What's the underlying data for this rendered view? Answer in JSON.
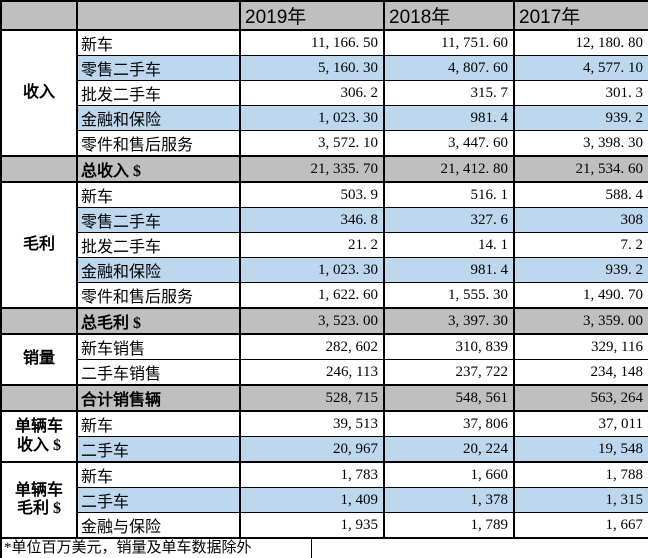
{
  "colors": {
    "header_bg": "#bfbfbf",
    "total_row_bg": "#bfbfbf",
    "highlight_row_bg": "#bdd7ee",
    "border": "#000000",
    "text": "#000000"
  },
  "header": {
    "years": [
      "2019年",
      "2018年",
      "2017年"
    ]
  },
  "rows": [
    {
      "kind": "data",
      "section": {
        "lines": [
          "收入"
        ],
        "span": 5
      },
      "label": "新车",
      "values": [
        "11, 166. 50",
        "11, 751. 60",
        "12, 180. 80"
      ],
      "bg": "white",
      "thick_top": true
    },
    {
      "kind": "data",
      "label": "零售二手车",
      "values": [
        "5, 160. 30",
        "4, 807. 60",
        "4, 577. 10"
      ],
      "bg": "blue"
    },
    {
      "kind": "data",
      "label": "批发二手车",
      "values": [
        "306. 2",
        "315. 7",
        "301. 3"
      ],
      "bg": "white"
    },
    {
      "kind": "data",
      "label": "金融和保险",
      "values": [
        "1, 023. 30",
        "981. 4",
        "939. 2"
      ],
      "bg": "blue"
    },
    {
      "kind": "data",
      "label": "零件和售后服务",
      "values": [
        "3, 572. 10",
        "3, 447. 60",
        "3, 398. 30"
      ],
      "bg": "white"
    },
    {
      "kind": "total",
      "label": "总收入 $",
      "values": [
        "21, 335. 70",
        "21, 412. 80",
        "21, 534. 60"
      ],
      "thick_top": true
    },
    {
      "kind": "data",
      "section": {
        "lines": [
          "毛利"
        ],
        "span": 5
      },
      "label": "新车",
      "values": [
        "503. 9",
        "516. 1",
        "588. 4"
      ],
      "bg": "white",
      "thick_top": true
    },
    {
      "kind": "data",
      "label": "零售二手车",
      "values": [
        "346. 8",
        "327. 6",
        "308"
      ],
      "bg": "blue"
    },
    {
      "kind": "data",
      "label": "批发二手车",
      "values": [
        "21. 2",
        "14. 1",
        "7. 2"
      ],
      "bg": "white"
    },
    {
      "kind": "data",
      "label": "金融和保险",
      "values": [
        "1, 023. 30",
        "981. 4",
        "939. 2"
      ],
      "bg": "blue"
    },
    {
      "kind": "data",
      "label": "零件和售后服务",
      "values": [
        "1, 622. 60",
        "1, 555. 30",
        "1, 490. 70"
      ],
      "bg": "white"
    },
    {
      "kind": "total",
      "label": "总毛利 $",
      "values": [
        "3, 523. 00",
        "3, 397. 30",
        "3, 359. 00"
      ],
      "thick_top": true
    },
    {
      "kind": "data",
      "section": {
        "lines": [
          "销量"
        ],
        "span": 2
      },
      "label": "新车销售",
      "values": [
        "282, 602",
        "310, 839",
        "329, 116"
      ],
      "bg": "white",
      "thick_top": true
    },
    {
      "kind": "data",
      "label": "二手车销售",
      "values": [
        "246, 113",
        "237, 722",
        "234, 148"
      ],
      "bg": "white"
    },
    {
      "kind": "total",
      "label": "合计销售辆",
      "values": [
        "528, 715",
        "548, 561",
        "563, 264"
      ],
      "thick_top": true
    },
    {
      "kind": "data",
      "section": {
        "lines": [
          "单辆车",
          "收入 $"
        ],
        "span": 2
      },
      "label": "新车",
      "values": [
        "39, 513",
        "37, 806",
        "37, 011"
      ],
      "bg": "white",
      "thick_top": true
    },
    {
      "kind": "data",
      "label": "二手车",
      "values": [
        "20, 967",
        "20, 224",
        "19, 548"
      ],
      "bg": "blue"
    },
    {
      "kind": "data",
      "section": {
        "lines": [
          "单辆车",
          "毛利 $"
        ],
        "span": 3
      },
      "label": "新车",
      "values": [
        "1, 783",
        "1, 660",
        "1, 788"
      ],
      "bg": "white",
      "thick_top": true
    },
    {
      "kind": "data",
      "label": "二手车",
      "values": [
        "1, 409",
        "1, 378",
        "1, 315"
      ],
      "bg": "blue"
    },
    {
      "kind": "data",
      "label": "金融与保险",
      "values": [
        "1, 935",
        "1, 789",
        "1, 667"
      ],
      "bg": "white"
    }
  ],
  "footnote": "*单位百万美元，销量及单车数据除外"
}
